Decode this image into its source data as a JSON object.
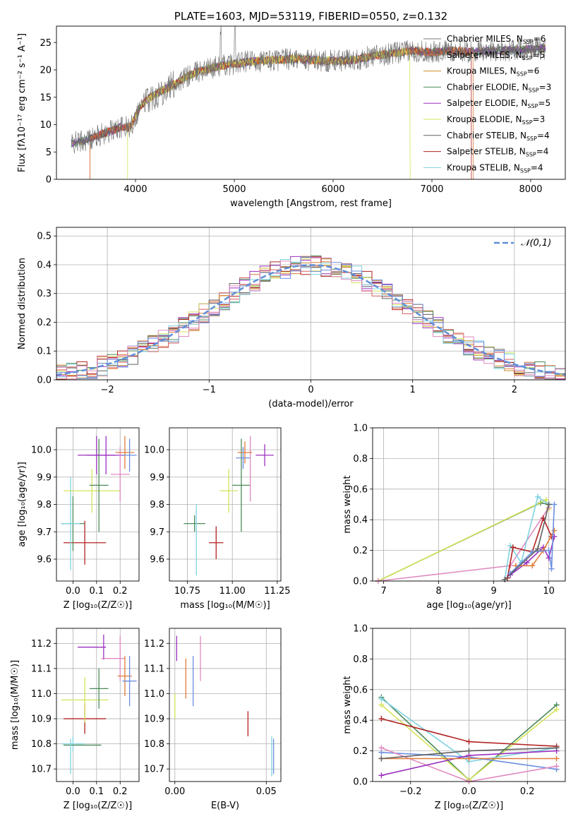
{
  "colors": [
    "#e07b39",
    "#d65f5f",
    "#cc8a2a",
    "#4a8a5a",
    "#9b30c0",
    "#d4e35a",
    "#606060",
    "#b22222",
    "#7fd3e0",
    "#6b8fe0",
    "#e08ac0"
  ],
  "chart_data": [
    {
      "id": "spectrum",
      "type": "line",
      "title": "PLATE=1603, MJD=53119, FIBERID=0550, z=0.132",
      "xlabel": "wavelength [Angstrom, rest frame]",
      "ylabel": "Flux [fλ10⁻¹⁷ erg cm⁻² s⁻¹ A⁻¹]",
      "xlim": [
        3200,
        8350
      ],
      "ylim": [
        0,
        28
      ],
      "xticks": [
        4000,
        5000,
        6000,
        7000,
        8000
      ],
      "yticks": [
        0,
        5,
        10,
        15,
        20,
        25
      ],
      "continuum": {
        "x": [
          3350,
          3550,
          3700,
          3850,
          3950,
          4050,
          4150,
          4300,
          4450,
          4600,
          4800,
          4950,
          5150,
          5400,
          5600,
          5800,
          6000,
          6200,
          6400,
          6600,
          6800,
          7000,
          7200,
          7400,
          7600,
          7800,
          8000,
          8150
        ],
        "y": [
          6.5,
          7.5,
          8.5,
          9.5,
          9.5,
          13.5,
          15,
          16.5,
          18,
          19.5,
          20.5,
          21,
          21.5,
          21.8,
          22,
          21.8,
          21.6,
          21.8,
          22.5,
          23,
          23.5,
          23.2,
          23.5,
          23.3,
          23.5,
          23.6,
          23.8,
          24
        ]
      },
      "legend": [
        {
          "label": "Chabrier MILES, N",
          "sub": "SSP",
          "value": "=6"
        },
        {
          "label": "Salpeter MILES, N",
          "sub": "SSP",
          "value": "=5"
        },
        {
          "label": "Kroupa MILES, N",
          "sub": "SSP",
          "value": "=6"
        },
        {
          "label": "Chabrier ELODIE, N",
          "sub": "SSP",
          "value": "=3"
        },
        {
          "label": "Salpeter ELODIE, N",
          "sub": "SSP",
          "value": "=5"
        },
        {
          "label": "Kroupa ELODIE, N",
          "sub": "SSP",
          "value": "=3"
        },
        {
          "label": "Chabrier STELIB, N",
          "sub": "SSP",
          "value": "=4"
        },
        {
          "label": "Salpeter STELIB, N",
          "sub": "SSP",
          "value": "=4"
        },
        {
          "label": "Kroupa STELIB, N",
          "sub": "SSP",
          "value": "=4"
        }
      ],
      "legend_colors": [
        "#7a7a7a",
        "#e07b39",
        "#cc8a2a",
        "#4a8a5a",
        "#9b30c0",
        "#d4e35a",
        "#606060",
        "#b22222",
        "#7fd3e0"
      ],
      "legend_position": "top-right"
    },
    {
      "id": "residuals",
      "type": "histogram",
      "xlabel": "(data-model)/error",
      "ylabel": "Normed distribution",
      "xlim": [
        -2.5,
        2.5
      ],
      "ylim": [
        0,
        0.53
      ],
      "xticks": [
        -2,
        -1,
        0,
        1,
        2
      ],
      "yticks": [
        0.0,
        0.1,
        0.2,
        0.3,
        0.4,
        0.5
      ],
      "bin_width": 0.1,
      "legend": [
        {
          "label": "𝒩(0,1)"
        }
      ],
      "legend_position": "top-right",
      "grid": true
    },
    {
      "id": "age_vs_Z",
      "type": "errorbar",
      "xlabel": "Z [log₁₀(Z/Z☉)]",
      "ylabel": "age  [log₁₀(age/yr)]",
      "xlim": [
        -0.07,
        0.28
      ],
      "ylim": [
        9.52,
        10.08
      ],
      "xticks": [
        0.0,
        0.1,
        0.2
      ],
      "yticks": [
        9.6,
        9.7,
        9.8,
        9.9,
        10.0
      ],
      "points": [
        {
          "x": 0.05,
          "y": 9.66,
          "xerr": 0.09,
          "yerr": 0.08,
          "color": "#b22222"
        },
        {
          "x": 0.0,
          "y": 9.73,
          "xerr": 0.05,
          "yerr": 0.1,
          "color": "#4a8a5a"
        },
        {
          "x": -0.01,
          "y": 9.73,
          "xerr": 0.04,
          "yerr": 0.17,
          "color": "#7fd3e0"
        },
        {
          "x": 0.08,
          "y": 9.85,
          "xerr": 0.12,
          "yerr": 0.08,
          "color": "#d4e35a"
        },
        {
          "x": 0.11,
          "y": 9.87,
          "xerr": 0.04,
          "yerr": 0.17,
          "color": "#4a8a5a"
        },
        {
          "x": 0.1,
          "y": 9.98,
          "xerr": 0.08,
          "yerr": 0.07,
          "color": "#9b30c0"
        },
        {
          "x": 0.14,
          "y": 9.98,
          "xerr": 0.08,
          "yerr": 0.07,
          "color": "#9b30c0"
        },
        {
          "x": 0.2,
          "y": 9.91,
          "xerr": 0.04,
          "yerr": 0.1,
          "color": "#e08ac0"
        },
        {
          "x": 0.22,
          "y": 9.99,
          "xerr": 0.04,
          "yerr": 0.06,
          "color": "#e07b39"
        },
        {
          "x": 0.24,
          "y": 9.98,
          "xerr": 0.03,
          "yerr": 0.06,
          "color": "#6b8fe0"
        }
      ],
      "grid": true
    },
    {
      "id": "age_vs_mass",
      "type": "errorbar",
      "xlabel": "mass [log₁₀(M/M☉)]",
      "ylabel": "",
      "xlim": [
        10.65,
        11.27
      ],
      "ylim": [
        9.52,
        10.08
      ],
      "xticks": [
        10.75,
        11.0,
        11.25
      ],
      "yticks": [
        9.6,
        9.7,
        9.8,
        9.9,
        10.0
      ],
      "points": [
        {
          "x": 10.91,
          "y": 9.66,
          "xerr": 0.04,
          "yerr": 0.06,
          "color": "#b22222"
        },
        {
          "x": 10.79,
          "y": 9.73,
          "xerr": 0.06,
          "yerr": 0.03,
          "color": "#4a8a5a"
        },
        {
          "x": 10.8,
          "y": 9.67,
          "xerr": 0.0,
          "yerr": 0.13,
          "color": "#7fd3e0"
        },
        {
          "x": 10.98,
          "y": 9.85,
          "xerr": 0.05,
          "yerr": 0.08,
          "color": "#d4e35a"
        },
        {
          "x": 11.05,
          "y": 9.87,
          "xerr": 0.05,
          "yerr": 0.17,
          "color": "#4a8a5a"
        },
        {
          "x": 11.18,
          "y": 9.98,
          "xerr": 0.05,
          "yerr": 0.04,
          "color": "#9b30c0"
        },
        {
          "x": 11.1,
          "y": 9.93,
          "xerr": 0.0,
          "yerr": 0.12,
          "color": "#e08ac0"
        },
        {
          "x": 11.07,
          "y": 9.99,
          "xerr": 0.04,
          "yerr": 0.04,
          "color": "#e07b39"
        },
        {
          "x": 11.06,
          "y": 9.97,
          "xerr": 0.04,
          "yerr": 0.04,
          "color": "#6b8fe0"
        }
      ],
      "grid": true
    },
    {
      "id": "massweight_vs_age",
      "type": "line",
      "xlabel": "age  [log₁₀(age/yr)]",
      "ylabel": "mass weight",
      "xlim": [
        6.8,
        10.3
      ],
      "ylim": [
        0,
        1.0
      ],
      "xticks": [
        7,
        8,
        9,
        10
      ],
      "yticks": [
        0.0,
        0.2,
        0.4,
        0.6,
        0.8,
        1.0
      ],
      "series": [
        {
          "color": "#4a8a5a",
          "x": [
            6.9,
            9.85,
            10.0
          ],
          "y": [
            0.0,
            0.51,
            0.5
          ]
        },
        {
          "color": "#d4e35a",
          "x": [
            6.9,
            9.95,
            10.0
          ],
          "y": [
            0.0,
            0.53,
            0.47
          ]
        },
        {
          "color": "#e08ac0",
          "x": [
            6.9,
            9.3,
            10.0
          ],
          "y": [
            0.0,
            0.1,
            0.48
          ]
        },
        {
          "color": "#7fd3e0",
          "x": [
            9.2,
            9.3,
            9.5,
            9.8,
            10.0
          ],
          "y": [
            0.01,
            0.23,
            0.12,
            0.55,
            0.5
          ]
        },
        {
          "color": "#b22222",
          "x": [
            9.25,
            9.35,
            9.7,
            9.9,
            10.05
          ],
          "y": [
            0.02,
            0.22,
            0.19,
            0.41,
            0.29
          ]
        },
        {
          "color": "#9b30c0",
          "x": [
            9.3,
            9.6,
            9.9,
            10.0,
            10.1
          ],
          "y": [
            0.04,
            0.12,
            0.22,
            0.15,
            0.29
          ]
        },
        {
          "color": "#e07b39",
          "x": [
            9.4,
            9.7,
            9.9,
            10.1
          ],
          "y": [
            0.1,
            0.1,
            0.2,
            0.33
          ]
        },
        {
          "color": "#6b8fe0",
          "x": [
            9.3,
            9.7,
            10.0,
            10.05,
            10.1
          ],
          "y": [
            0.05,
            0.19,
            0.2,
            0.08,
            0.5
          ]
        },
        {
          "color": "#606060",
          "x": [
            9.2,
            9.8,
            10.0
          ],
          "y": [
            0.01,
            0.21,
            0.5
          ]
        }
      ],
      "grid": true
    },
    {
      "id": "mass_vs_Z",
      "type": "errorbar",
      "xlabel": "Z [log₁₀(Z/Z☉)]",
      "ylabel": "mass [log₁₀(M/M☉)]",
      "xlim": [
        -0.07,
        0.28
      ],
      "ylim": [
        10.65,
        11.26
      ],
      "xticks": [
        0.0,
        0.1,
        0.2
      ],
      "yticks": [
        10.7,
        10.8,
        10.9,
        11.0,
        11.1,
        11.2
      ],
      "points": [
        {
          "x": 0.05,
          "y": 10.9,
          "xerr": 0.09,
          "yerr": 0.06,
          "color": "#b22222"
        },
        {
          "x": 0.0,
          "y": 10.8,
          "xerr": 0.05,
          "yerr": 0.03,
          "color": "#7fd3e0"
        },
        {
          "x": 0.04,
          "y": 10.795,
          "xerr": 0.08,
          "yerr": 0.0,
          "color": "#4a8a5a"
        },
        {
          "x": -0.01,
          "y": 10.75,
          "xerr": 0.0,
          "yerr": 0.07,
          "color": "#7fd3e0"
        },
        {
          "x": 0.05,
          "y": 10.975,
          "xerr": 0.1,
          "yerr": 0.09,
          "color": "#d4e35a"
        },
        {
          "x": 0.11,
          "y": 11.02,
          "xerr": 0.04,
          "yerr": 0.08,
          "color": "#4a8a5a"
        },
        {
          "x": 0.08,
          "y": 11.185,
          "xerr": 0.06,
          "yerr": 0.0,
          "color": "#9b30c0"
        },
        {
          "x": 0.13,
          "y": 11.185,
          "xerr": 0.0,
          "yerr": 0.05,
          "color": "#9b30c0"
        },
        {
          "x": 0.17,
          "y": 11.14,
          "xerr": 0.05,
          "yerr": 0.0,
          "color": "#e08ac0"
        },
        {
          "x": 0.2,
          "y": 11.14,
          "xerr": 0.0,
          "yerr": 0.09,
          "color": "#e08ac0"
        },
        {
          "x": 0.22,
          "y": 11.07,
          "xerr": 0.03,
          "yerr": 0.08,
          "color": "#e07b39"
        },
        {
          "x": 0.24,
          "y": 11.05,
          "xerr": 0.03,
          "yerr": 0.1,
          "color": "#6b8fe0"
        }
      ],
      "grid": true
    },
    {
      "id": "mass_vs_ebv",
      "type": "errorbar",
      "xlabel": "E(B-V)",
      "ylabel": "",
      "xlim": [
        -0.003,
        0.058
      ],
      "ylim": [
        10.65,
        11.26
      ],
      "xticks": [
        0.0,
        0.05
      ],
      "yticks": [
        10.7,
        10.8,
        10.9,
        11.0,
        11.1,
        11.2
      ],
      "points": [
        {
          "x": 0.0,
          "y": 10.95,
          "xerr": 0.0,
          "yerr": 0.05,
          "color": "#d4e35a"
        },
        {
          "x": 0.001,
          "y": 11.18,
          "xerr": 0.0,
          "yerr": 0.05,
          "color": "#9b30c0"
        },
        {
          "x": 0.006,
          "y": 11.06,
          "xerr": 0.0,
          "yerr": 0.08,
          "color": "#e07b39"
        },
        {
          "x": 0.01,
          "y": 11.05,
          "xerr": 0.0,
          "yerr": 0.1,
          "color": "#6b8fe0"
        },
        {
          "x": 0.014,
          "y": 11.14,
          "xerr": 0.0,
          "yerr": 0.09,
          "color": "#e08ac0"
        },
        {
          "x": 0.04,
          "y": 10.88,
          "xerr": 0.0,
          "yerr": 0.05,
          "color": "#b22222"
        },
        {
          "x": 0.053,
          "y": 10.75,
          "xerr": 0.0,
          "yerr": 0.08,
          "color": "#7fd3e0"
        },
        {
          "x": 0.054,
          "y": 10.75,
          "xerr": 0.0,
          "yerr": 0.07,
          "color": "#6b8fe0"
        }
      ],
      "grid": true
    },
    {
      "id": "massweight_vs_Z",
      "type": "line",
      "xlabel": "Z [log₁₀(Z/Z☉)]",
      "ylabel": "mass weight",
      "xlim": [
        -0.33,
        0.33
      ],
      "ylim": [
        0,
        1.0
      ],
      "xticks": [
        -0.2,
        0.0,
        0.2
      ],
      "yticks": [
        0.0,
        0.2,
        0.4,
        0.6,
        0.8,
        1.0
      ],
      "series": [
        {
          "color": "#4a8a5a",
          "x": [
            -0.3,
            0.0,
            0.3
          ],
          "y": [
            0.55,
            0.01,
            0.5
          ]
        },
        {
          "color": "#d4e35a",
          "x": [
            -0.3,
            0.0,
            0.3
          ],
          "y": [
            0.5,
            0.01,
            0.47
          ]
        },
        {
          "color": "#7fd3e0",
          "x": [
            -0.3,
            0.0,
            0.3
          ],
          "y": [
            0.54,
            0.13,
            0.22
          ]
        },
        {
          "color": "#b22222",
          "x": [
            -0.3,
            0.0,
            0.3
          ],
          "y": [
            0.41,
            0.26,
            0.23
          ]
        },
        {
          "color": "#6b8fe0",
          "x": [
            -0.3,
            0.0,
            0.3
          ],
          "y": [
            0.19,
            0.16,
            0.08
          ]
        },
        {
          "color": "#e08ac0",
          "x": [
            -0.3,
            0.0,
            0.3
          ],
          "y": [
            0.22,
            0.0,
            0.1
          ]
        },
        {
          "color": "#9b30c0",
          "x": [
            -0.3,
            0.0,
            0.3
          ],
          "y": [
            0.04,
            0.17,
            0.2
          ]
        },
        {
          "color": "#e07b39",
          "x": [
            -0.3,
            0.0,
            0.3
          ],
          "y": [
            0.15,
            0.15,
            0.15
          ]
        },
        {
          "color": "#606060",
          "x": [
            -0.3,
            0.0,
            0.3
          ],
          "y": [
            0.15,
            0.2,
            0.22
          ]
        }
      ],
      "grid": true
    }
  ]
}
